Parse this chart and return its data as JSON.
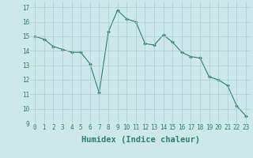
{
  "x": [
    0,
    1,
    2,
    3,
    4,
    5,
    6,
    7,
    8,
    9,
    10,
    11,
    12,
    13,
    14,
    15,
    16,
    17,
    18,
    19,
    20,
    21,
    22,
    23
  ],
  "y": [
    15.0,
    14.8,
    14.3,
    14.1,
    13.9,
    13.9,
    13.1,
    11.1,
    15.3,
    16.8,
    16.2,
    16.0,
    14.5,
    14.4,
    15.1,
    14.6,
    13.9,
    13.6,
    13.5,
    12.2,
    12.0,
    11.6,
    10.2,
    9.5
  ],
  "line_color": "#2e7d6e",
  "marker": "D",
  "marker_size": 2,
  "bg_color": "#cde8ea",
  "grid_color": "#aacdd0",
  "xlabel": "Humidex (Indice chaleur)",
  "xlim": [
    -0.5,
    23.5
  ],
  "ylim": [
    9,
    17.4
  ],
  "yticks": [
    9,
    10,
    11,
    12,
    13,
    14,
    15,
    16,
    17
  ],
  "xticks": [
    0,
    1,
    2,
    3,
    4,
    5,
    6,
    7,
    8,
    9,
    10,
    11,
    12,
    13,
    14,
    15,
    16,
    17,
    18,
    19,
    20,
    21,
    22,
    23
  ],
  "tick_fontsize": 5.5,
  "label_fontsize": 7.5
}
